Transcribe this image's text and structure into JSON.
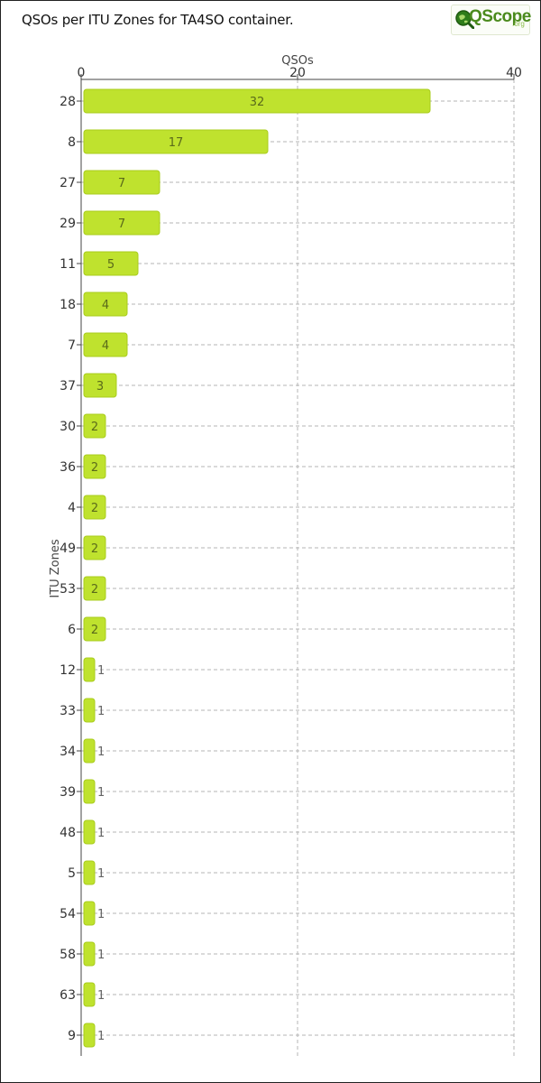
{
  "title": "QSOs per ITU Zones for TA4SO container.",
  "logo": {
    "text": "QScope",
    "suffix": ".org"
  },
  "chart_data": {
    "type": "bar",
    "orientation": "horizontal",
    "xlabel": "QSOs",
    "ylabel": "ITU Zones",
    "xlim": [
      0,
      40
    ],
    "xticks": [
      0,
      20,
      40
    ],
    "grid": true,
    "categories": [
      "28",
      "8",
      "27",
      "29",
      "11",
      "18",
      "7",
      "37",
      "30",
      "36",
      "4",
      "49",
      "53",
      "6",
      "12",
      "33",
      "34",
      "39",
      "48",
      "5",
      "54",
      "58",
      "63",
      "9"
    ],
    "values": [
      32,
      17,
      7,
      7,
      5,
      4,
      4,
      3,
      2,
      2,
      2,
      2,
      2,
      2,
      1,
      1,
      1,
      1,
      1,
      1,
      1,
      1,
      1,
      1
    ],
    "colors": {
      "bar": "#bfe22e",
      "bar_stroke": "#a9cc1c",
      "grid": "#b5b5b5",
      "axis": "#444444",
      "text": "#333333",
      "bar_label": "#5a6a1a"
    }
  }
}
